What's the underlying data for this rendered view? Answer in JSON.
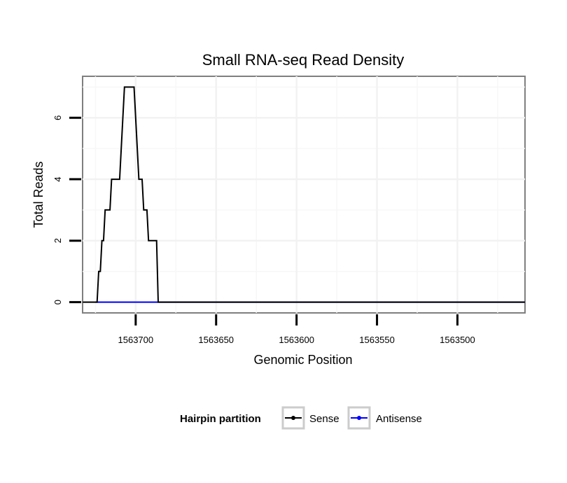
{
  "chart_data": {
    "type": "line",
    "title": "Small RNA-seq Read Density",
    "xlabel": "Genomic Position",
    "ylabel": "Total Reads",
    "xlim": [
      1563733,
      1563458
    ],
    "x_reversed": true,
    "ylim": [
      -0.35,
      7.35
    ],
    "x_ticks": [
      1563700,
      1563650,
      1563600,
      1563550,
      1563500
    ],
    "x_tick_labels": [
      "1563700",
      "1563650",
      "1563600",
      "1563550",
      "1563500"
    ],
    "y_ticks": [
      0,
      2,
      4,
      6
    ],
    "y_tick_labels": [
      "0",
      "2",
      "4",
      "6"
    ],
    "grid": true,
    "legend": {
      "title": "Hairpin partition",
      "position": "bottom",
      "entries": [
        "Sense",
        "Antisense"
      ]
    },
    "series": [
      {
        "name": "Antisense",
        "color": "#0000ff",
        "x": [
          1563725,
          1563717,
          1563685,
          1563458
        ],
        "y": [
          0,
          0,
          0,
          0
        ]
      },
      {
        "name": "Sense",
        "color": "#000000",
        "x": [
          1563733,
          1563725,
          1563724,
          1563723,
          1563722,
          1563721,
          1563720,
          1563719,
          1563718,
          1563717,
          1563716,
          1563715,
          1563714,
          1563713,
          1563712,
          1563711,
          1563710,
          1563709,
          1563708,
          1563707,
          1563706,
          1563705,
          1563704,
          1563703,
          1563702,
          1563701,
          1563700,
          1563699,
          1563698,
          1563697,
          1563696,
          1563695,
          1563694,
          1563693,
          1563692,
          1563691,
          1563690,
          1563689,
          1563688,
          1563687,
          1563686,
          1563685,
          1563684,
          1563458
        ],
        "y": [
          0,
          0,
          0,
          1,
          1,
          2,
          2,
          3,
          3,
          3,
          3,
          4,
          4,
          4,
          4,
          4,
          4,
          5,
          6,
          7,
          7,
          7,
          7,
          7,
          7,
          7,
          6,
          5,
          4,
          4,
          4,
          3,
          3,
          3,
          2,
          2,
          2,
          2,
          2,
          2,
          0,
          0,
          0,
          0
        ]
      }
    ]
  }
}
